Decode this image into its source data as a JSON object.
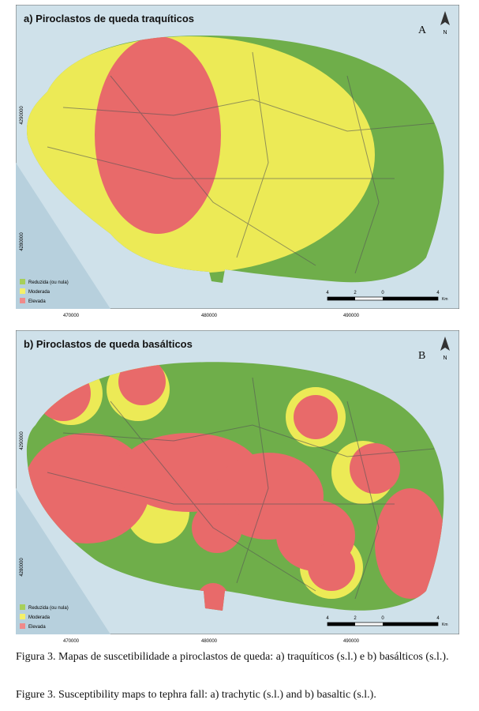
{
  "panels": [
    {
      "title": "a) Piroclastos de queda traquíticos",
      "letter": "A",
      "north": "N",
      "y_labels": [
        "4290000",
        "4280000"
      ],
      "x_labels": [
        "470000",
        "480000",
        "490000"
      ],
      "legend": [
        "Reduzida (ou nula)",
        "Moderada",
        "Elevada"
      ],
      "scale_labels": [
        "4",
        "2",
        "0",
        "4"
      ],
      "scale_unit": "Km"
    },
    {
      "title": "b) Piroclastos de queda basálticos",
      "letter": "B",
      "north": "N",
      "y_labels": [
        "4290000",
        "4280000"
      ],
      "x_labels": [
        "470000",
        "480000",
        "490000"
      ],
      "legend": [
        "Reduzida (ou nula)",
        "Moderada",
        "Elevada"
      ],
      "scale_labels": [
        "4",
        "2",
        "0",
        "4"
      ],
      "scale_unit": "Km"
    }
  ],
  "captions": [
    "Figura 3. Mapas de suscetibilidade a piroclastos de queda: a) traquíticos (s.l.) e b) basálticos (s.l.).",
    "Figure 3. Susceptibility maps to tephra fall: a) trachytic (s.l.) and b) basaltic (s.l.)."
  ]
}
